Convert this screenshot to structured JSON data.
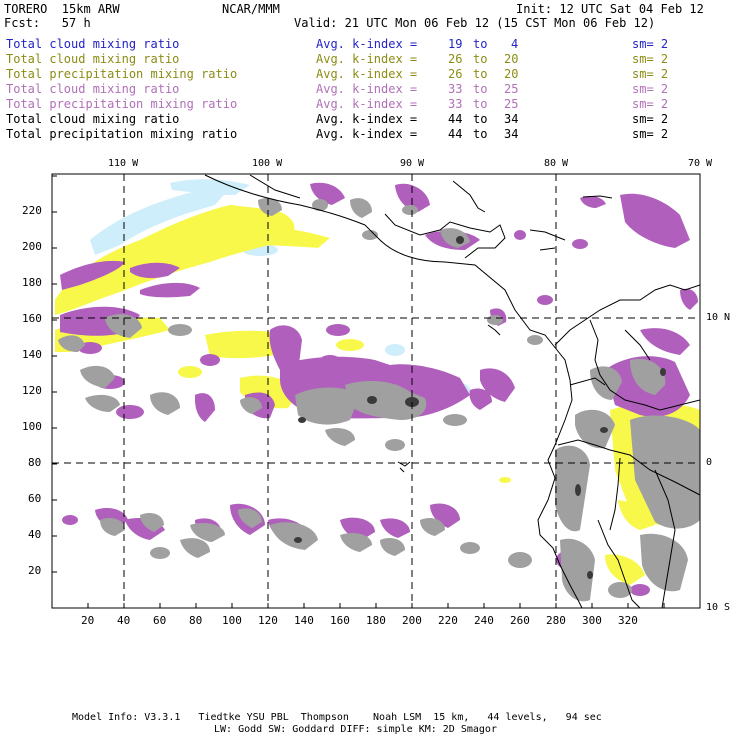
{
  "header": {
    "model": "TORERO  15km ARW",
    "center": "NCAR/MMM",
    "init": "Init: 12 UTC Sat 04 Feb 12",
    "fcst": "Fcst:   57 h",
    "valid": "Valid: 21 UTC Mon 06 Feb 12 (15 CST Mon 06 Feb 12)"
  },
  "legend": [
    {
      "field": "Total cloud mixing ratio",
      "k_label": "Avg. k-index =",
      "k_from": "19",
      "to": "to",
      "k_to": "4",
      "sm": "sm= 2",
      "color": "#2323c8"
    },
    {
      "field": "Total cloud mixing ratio",
      "k_label": "Avg. k-index =",
      "k_from": "26",
      "to": "to",
      "k_to": "20",
      "sm": "sm= 2",
      "color": "#8c8c14"
    },
    {
      "field": "Total precipitation mixing ratio",
      "k_label": "Avg. k-index =",
      "k_from": "26",
      "to": "to",
      "k_to": "20",
      "sm": "sm= 2",
      "color": "#8c8c14"
    },
    {
      "field": "Total cloud mixing ratio",
      "k_label": "Avg. k-index =",
      "k_from": "33",
      "to": "to",
      "k_to": "25",
      "sm": "sm= 2",
      "color": "#b070b8"
    },
    {
      "field": "Total precipitation mixing ratio",
      "k_label": "Avg. k-index =",
      "k_from": "33",
      "to": "to",
      "k_to": "25",
      "sm": "sm= 2",
      "color": "#b070b8"
    },
    {
      "field": "Total cloud mixing ratio",
      "k_label": "Avg. k-index =",
      "k_from": "44",
      "to": "to",
      "k_to": "34",
      "sm": "sm= 2",
      "color": "#000000"
    },
    {
      "field": "Total precipitation mixing ratio",
      "k_label": "Avg. k-index =",
      "k_from": "44",
      "to": "to",
      "k_to": "34",
      "sm": "sm= 2",
      "color": "#000000"
    }
  ],
  "map": {
    "lon_labels": [
      "110 W",
      "100 W",
      "90 W",
      "80 W",
      "70 W"
    ],
    "lat_labels": [
      "10 N",
      "0",
      "10 S"
    ],
    "x_ticks": [
      "20",
      "40",
      "60",
      "80",
      "100",
      "120",
      "140",
      "160",
      "180",
      "200",
      "220",
      "240",
      "260",
      "280",
      "300",
      "320"
    ],
    "y_ticks": [
      "20",
      "40",
      "60",
      "80",
      "100",
      "120",
      "140",
      "160",
      "180",
      "200",
      "220"
    ],
    "colors": {
      "light_blue": "#cdeefa",
      "yellow": "#f8f84a",
      "purple": "#b060bc",
      "gray": "#a0a0a0",
      "dark": "#3a3a3a"
    }
  },
  "footer": {
    "line1": "Model Info: V3.3.1   Tiedtke YSU PBL  Thompson    Noah LSM  15 km,   44 levels,   94 sec",
    "line2": "LW: Godd SW: Goddard DIFF: simple KM: 2D Smagor"
  }
}
